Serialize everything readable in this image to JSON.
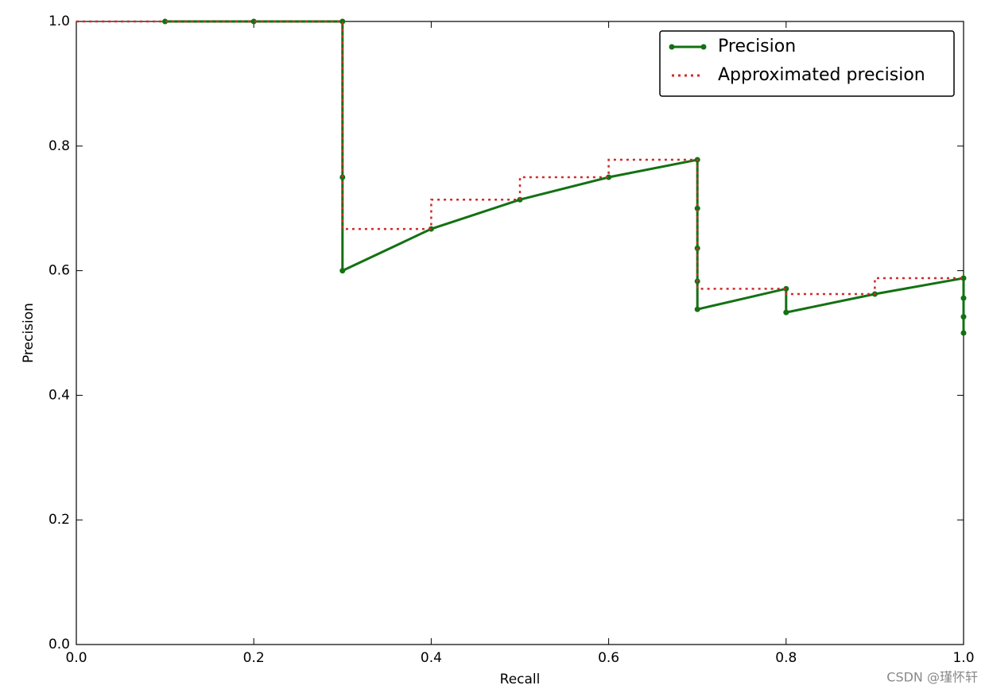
{
  "chart_data": {
    "type": "line",
    "xlabel": "Recall",
    "ylabel": "Precision",
    "xlim": [
      0,
      1
    ],
    "ylim": [
      0,
      1
    ],
    "xticks": [
      {
        "value": 0,
        "label": "0.0"
      },
      0.2,
      0.4,
      0.6,
      0.8,
      {
        "value": 1,
        "label": "1.0"
      }
    ],
    "yticks": [
      {
        "value": 0,
        "label": "0.0"
      },
      0.2,
      0.4,
      0.6,
      0.8,
      {
        "value": 1,
        "label": "1.0"
      }
    ],
    "legend": "upper right",
    "series": [
      {
        "name": "Precision",
        "color": "#137113",
        "style": "solid",
        "markers": true,
        "x": [
          0.1,
          0.2,
          0.3,
          0.3,
          0.3,
          0.4,
          0.5,
          0.6,
          0.7,
          0.7,
          0.7,
          0.7,
          0.7,
          0.8,
          0.8,
          0.9,
          1.0,
          1.0,
          1.0,
          1.0
        ],
        "values": [
          1.0,
          1.0,
          1.0,
          0.75,
          0.6,
          0.667,
          0.714,
          0.75,
          0.778,
          0.7,
          0.636,
          0.583,
          0.538,
          0.571,
          0.533,
          0.5625,
          0.588,
          0.556,
          0.526,
          0.5
        ]
      },
      {
        "name": "Approximated precision",
        "color": "#d02a2a",
        "style": "dotted",
        "markers": false,
        "x": [
          0,
          0.3,
          0.3,
          0.4,
          0.4,
          0.5,
          0.5,
          0.6,
          0.6,
          0.7,
          0.7,
          0.8,
          0.8,
          0.9,
          0.9,
          1.0
        ],
        "values": [
          1.0,
          1.0,
          0.667,
          0.667,
          0.714,
          0.714,
          0.75,
          0.75,
          0.778,
          0.778,
          0.571,
          0.571,
          0.5625,
          0.5625,
          0.588,
          0.588
        ]
      }
    ],
    "watermark": "CSDN @瑾怀轩"
  }
}
